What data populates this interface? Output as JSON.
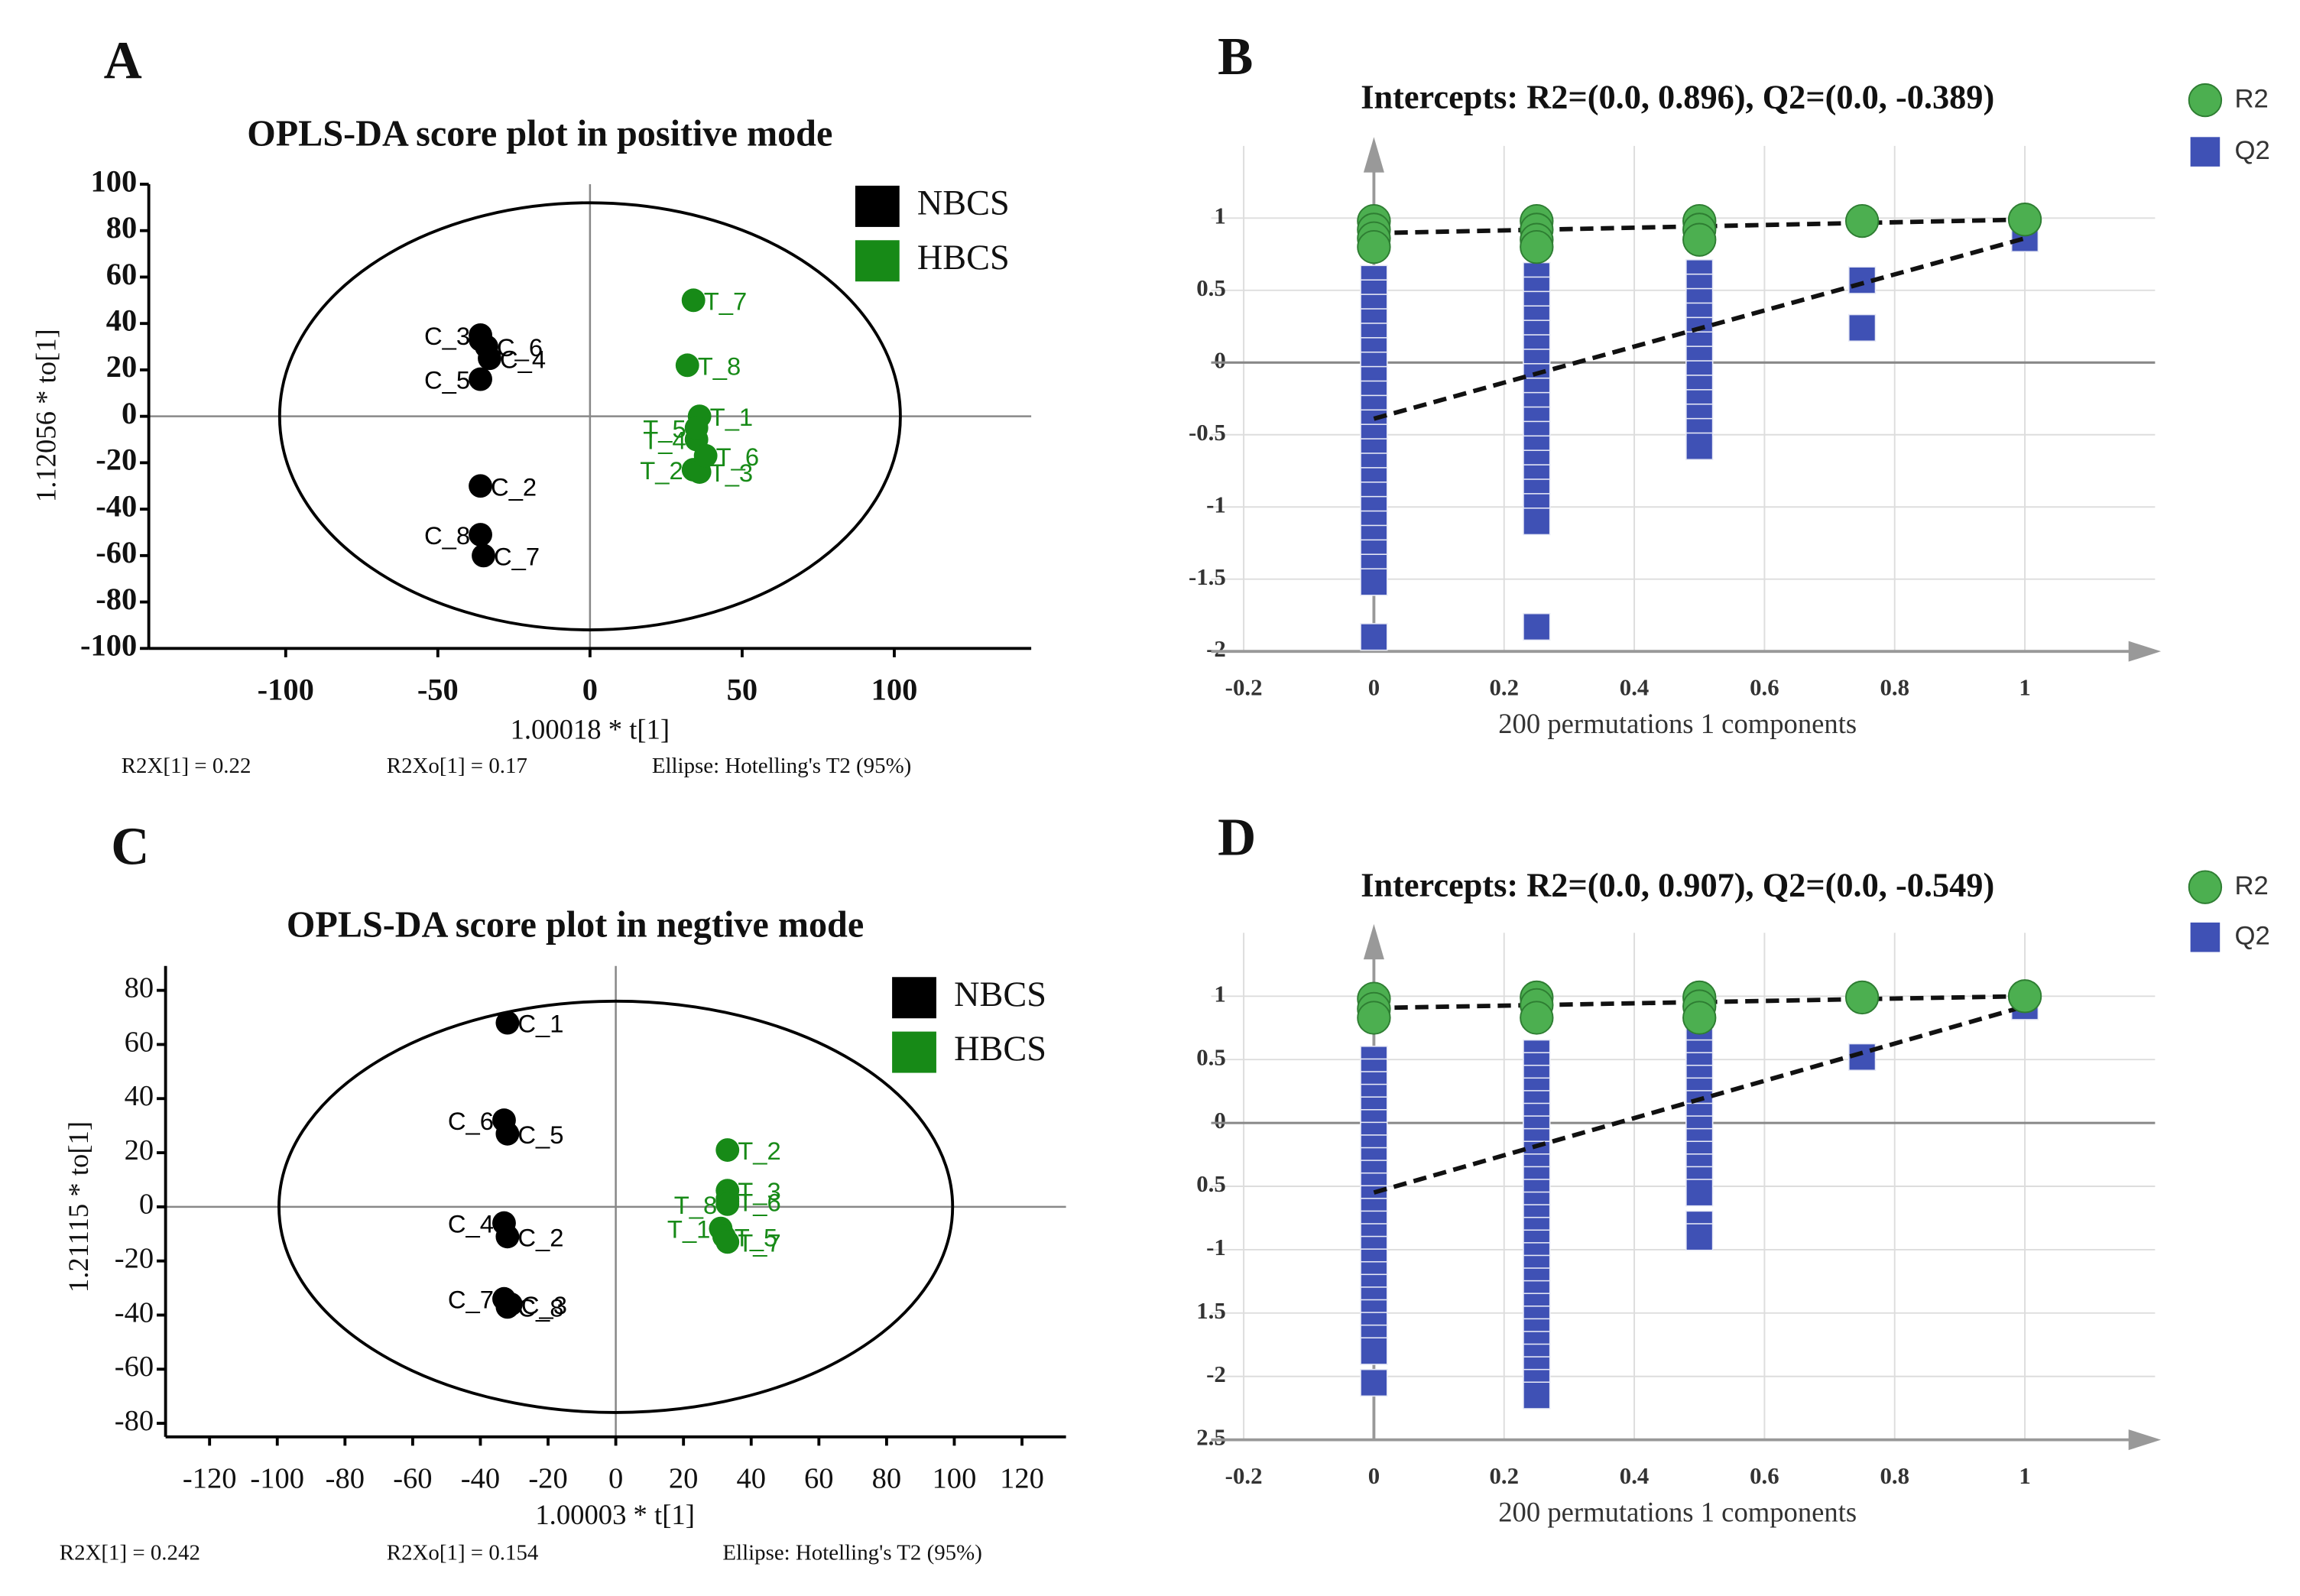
{
  "chart_data": [
    {
      "panel": "A",
      "type": "scatter",
      "title": "OPLS-DA score plot in positive mode",
      "x_label": "1.00018 * t[1]",
      "y_label": "1.12056 * to[1]",
      "notes": [
        "R2X[1] = 0.22",
        "R2Xo[1] = 0.17",
        "Ellipse: Hotelling's T2 (95%)"
      ],
      "xlim": [
        -145,
        145
      ],
      "ylim": [
        -100,
        100
      ],
      "xticks": [
        -100,
        -50,
        0,
        50,
        100
      ],
      "yticks": [
        100,
        80,
        60,
        40,
        20,
        0,
        -20,
        -40,
        -60,
        -80,
        -100
      ],
      "ellipse": {
        "x_radius": 102,
        "y_radius": 92
      },
      "series": [
        {
          "name": "NBCS",
          "color": "#000000",
          "x": [
            -36,
            -36,
            -36,
            -33,
            -36,
            -34,
            -35,
            -36
          ],
          "values": [
            33,
            -30,
            35,
            25,
            16,
            30,
            -60,
            -51
          ],
          "point_labels": [
            null,
            "C_2",
            "C_3",
            "C_4",
            "C_5",
            "C_6",
            "C_7",
            "C_8"
          ]
        },
        {
          "name": "HBCS",
          "color": "#178a17",
          "x": [
            36,
            34,
            36,
            35,
            35,
            38,
            34,
            32
          ],
          "values": [
            0,
            -23,
            -24,
            -10,
            -5,
            -17,
            50,
            22
          ],
          "point_labels": [
            "T_1",
            "T_2",
            "T_3",
            "T_4",
            "T_5",
            "T_6",
            "T_7",
            "T_8"
          ]
        }
      ]
    },
    {
      "panel": "B",
      "type": "permutation",
      "title": "Intercepts: R2=(0.0, 0.896), Q2=(0.0, -0.389)",
      "x_label": "200 permutations 1 components",
      "xlim": [
        -0.25,
        1.2
      ],
      "ylim": [
        -2,
        1.5
      ],
      "xticks": [
        -0.2,
        0,
        0.2,
        0.4,
        0.6,
        0.8,
        1
      ],
      "yticks": [
        1,
        0.5,
        0,
        -0.5,
        -1,
        -1.5,
        -2
      ],
      "series": [
        {
          "name": "R2",
          "color": "#4caf50",
          "marker": "circle",
          "x": [
            0,
            0,
            0,
            0,
            0.25,
            0.25,
            0.25,
            0.25,
            0.5,
            0.5,
            0.5,
            0.75,
            1
          ],
          "values": [
            0.98,
            0.92,
            0.86,
            0.8,
            0.98,
            0.92,
            0.85,
            0.8,
            0.98,
            0.92,
            0.85,
            0.98,
            0.99
          ]
        },
        {
          "name": "Q2",
          "color": "#3f51b5",
          "marker": "square",
          "x": [
            0,
            0,
            0,
            0,
            0,
            0,
            0,
            0,
            0,
            0,
            0,
            0,
            0,
            0,
            0,
            0,
            0,
            0,
            0,
            0,
            0,
            0,
            0,
            0.25,
            0.25,
            0.25,
            0.25,
            0.25,
            0.25,
            0.25,
            0.25,
            0.25,
            0.25,
            0.25,
            0.25,
            0.25,
            0.25,
            0.25,
            0.25,
            0.25,
            0.25,
            0.25,
            0.5,
            0.5,
            0.5,
            0.5,
            0.5,
            0.5,
            0.5,
            0.5,
            0.5,
            0.5,
            0.5,
            0.5,
            0.5,
            0.75,
            0.75,
            1
          ],
          "values": [
            0.58,
            0.48,
            0.38,
            0.28,
            0.18,
            0.08,
            -0.02,
            -0.12,
            -0.22,
            -0.32,
            -0.42,
            -0.52,
            -0.62,
            -0.72,
            -0.82,
            -0.92,
            -1.02,
            -1.12,
            -1.22,
            -1.32,
            -1.42,
            -1.52,
            -1.9,
            0.6,
            0.5,
            0.4,
            0.3,
            0.2,
            0.1,
            0,
            -0.1,
            -0.2,
            -0.3,
            -0.4,
            -0.5,
            -0.6,
            -0.7,
            -0.8,
            -0.9,
            -1,
            -1.1,
            -1.83,
            0.62,
            0.52,
            0.42,
            0.32,
            0.22,
            0.12,
            0.02,
            -0.08,
            -0.18,
            -0.28,
            -0.38,
            -0.48,
            -0.58,
            0.57,
            0.24,
            0.86
          ]
        }
      ],
      "lines": [
        {
          "x": [
            0,
            1
          ],
          "values": [
            0.896,
            0.99
          ]
        },
        {
          "x": [
            0,
            1
          ],
          "values": [
            -0.389,
            0.86
          ]
        }
      ]
    },
    {
      "panel": "C",
      "type": "scatter",
      "title": "OPLS-DA score plot in negtive mode",
      "x_label": "1.00003 * t[1]",
      "y_label": "1.21115 * to[1]",
      "notes": [
        "R2X[1] = 0.242",
        "R2Xo[1] = 0.154",
        "Ellipse: Hotelling's T2 (95%)"
      ],
      "xlim": [
        -133,
        133
      ],
      "ylim": [
        -85,
        89
      ],
      "xticks": [
        -120,
        -100,
        -80,
        -60,
        -40,
        -20,
        0,
        20,
        40,
        60,
        80,
        100,
        120
      ],
      "yticks": [
        80,
        60,
        40,
        20,
        0,
        -20,
        -40,
        -60,
        -80
      ],
      "ellipse": {
        "x_radius": 99.5,
        "y_radius": 76
      },
      "series": [
        {
          "name": "NBCS",
          "color": "#000000",
          "x": [
            -32,
            -32,
            -31,
            -33,
            -32,
            -33,
            -33,
            -32
          ],
          "values": [
            68,
            -11,
            -36,
            -6,
            27,
            32,
            -34,
            -37
          ],
          "point_labels": [
            "C_1",
            "C_2",
            "C_3",
            "C_4",
            "C_5",
            "C_6",
            "C_7",
            "C_8"
          ]
        },
        {
          "name": "HBCS",
          "color": "#178a17",
          "x": [
            31,
            33,
            33,
            33,
            32,
            33,
            33,
            33
          ],
          "values": [
            -8,
            21,
            6,
            3,
            -11,
            2,
            -13,
            1
          ],
          "point_labels": [
            "T_1",
            "T_2",
            "T_3",
            null,
            "T_5",
            "T_6",
            "T_7",
            "T_8"
          ]
        }
      ]
    },
    {
      "panel": "D",
      "type": "permutation",
      "title": "Intercepts: R2=(0.0, 0.907), Q2=(0.0, -0.549)",
      "x_label": "200 permutations 1 components",
      "xlim": [
        -0.25,
        1.2
      ],
      "ylim": [
        -2.5,
        1.5
      ],
      "xticks": [
        -0.2,
        0,
        0.2,
        0.4,
        0.6,
        0.8,
        1
      ],
      "yticks": [
        1,
        0.5,
        0,
        {
          "value": -0.5,
          "label": "0.5"
        },
        -1,
        {
          "value": -1.5,
          "label": "1.5"
        },
        -2,
        {
          "value": -2.5,
          "label": "2.5"
        }
      ],
      "series": [
        {
          "name": "R2",
          "color": "#4caf50",
          "marker": "circle",
          "x": [
            0,
            0,
            0,
            0.25,
            0.25,
            0.25,
            0.5,
            0.5,
            0.5,
            0.75,
            1
          ],
          "values": [
            0.98,
            0.9,
            0.83,
            0.99,
            0.93,
            0.83,
            0.99,
            0.92,
            0.83,
            0.99,
            1.0
          ]
        },
        {
          "name": "Q2",
          "color": "#3f51b5",
          "marker": "square",
          "x": [
            0,
            0,
            0,
            0,
            0,
            0,
            0,
            0,
            0,
            0,
            0,
            0,
            0,
            0,
            0,
            0,
            0,
            0,
            0,
            0,
            0,
            0,
            0,
            0,
            0,
            0.25,
            0.25,
            0.25,
            0.25,
            0.25,
            0.25,
            0.25,
            0.25,
            0.25,
            0.25,
            0.25,
            0.25,
            0.25,
            0.25,
            0.25,
            0.25,
            0.25,
            0.25,
            0.25,
            0.25,
            0.25,
            0.25,
            0.25,
            0.25,
            0.25,
            0.25,
            0.25,
            0.25,
            0.5,
            0.5,
            0.5,
            0.5,
            0.5,
            0.5,
            0.5,
            0.5,
            0.5,
            0.5,
            0.5,
            0.5,
            0.5,
            0.5,
            0.5,
            0.75,
            1
          ],
          "values": [
            0.5,
            0.4,
            0.3,
            0.2,
            0.1,
            0,
            -0.1,
            -0.2,
            -0.3,
            -0.4,
            -0.5,
            -0.6,
            -0.7,
            -0.8,
            -0.9,
            -1,
            -1.1,
            -1.2,
            -1.3,
            -1.4,
            -1.5,
            -1.6,
            -1.7,
            -1.8,
            -2.05,
            0.55,
            0.45,
            0.35,
            0.25,
            0.15,
            0.05,
            -0.05,
            -0.15,
            -0.25,
            -0.35,
            -0.45,
            -0.55,
            -0.65,
            -0.75,
            -0.85,
            -0.95,
            -1.05,
            -1.15,
            -1.25,
            -1.35,
            -1.45,
            -1.55,
            -1.65,
            -1.75,
            -1.85,
            -1.95,
            -2.05,
            -2.15,
            0.65,
            0.55,
            0.45,
            0.35,
            0.25,
            0.15,
            0.05,
            -0.05,
            -0.15,
            -0.25,
            -0.35,
            -0.45,
            -0.55,
            -0.8,
            -0.9,
            0.52,
            0.92
          ]
        }
      ],
      "lines": [
        {
          "x": [
            0,
            1
          ],
          "values": [
            0.907,
            1.0
          ]
        },
        {
          "x": [
            0,
            1
          ],
          "values": [
            -0.549,
            0.92
          ]
        }
      ]
    }
  ]
}
